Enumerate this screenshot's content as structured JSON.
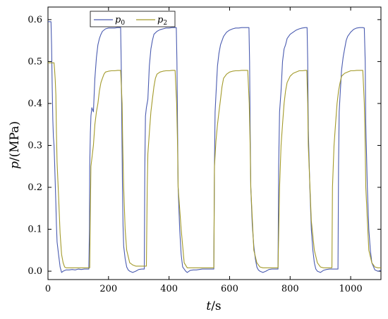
{
  "chart_data": {
    "type": "line",
    "title": "",
    "xlabel": {
      "var": "t",
      "unit": "/s"
    },
    "ylabel": {
      "var": "p",
      "unit": "/(MPa)"
    },
    "xlim": [
      0,
      1100
    ],
    "ylim": [
      -0.02,
      0.63
    ],
    "xticks": [
      0,
      200,
      400,
      600,
      800,
      1000
    ],
    "xtick_labels": [
      "0",
      "200",
      "400",
      "600",
      "800",
      "1000"
    ],
    "yticks": [
      0.0,
      0.1,
      0.2,
      0.3,
      0.4,
      0.5,
      0.6
    ],
    "ytick_labels": [
      "0.0",
      "0.1",
      "0.2",
      "0.3",
      "0.4",
      "0.5",
      "0.6"
    ],
    "grid": false,
    "legend_position": "top-left",
    "colors": {
      "p0": "#4a5bb0",
      "p2": "#a39a2a"
    },
    "series": [
      {
        "name": "p0",
        "var": "p",
        "sub": "0",
        "x": [
          0,
          5,
          10,
          12,
          14,
          16,
          18,
          20,
          22,
          24,
          26,
          28,
          30,
          35,
          40,
          45,
          50,
          60,
          70,
          80,
          90,
          100,
          110,
          120,
          130,
          135,
          137,
          138,
          140,
          142,
          145,
          150,
          155,
          160,
          165,
          170,
          175,
          180,
          190,
          200,
          210,
          220,
          230,
          240,
          242,
          244,
          246,
          248,
          250,
          255,
          260,
          265,
          270,
          280,
          290,
          300,
          310,
          318,
          320,
          322,
          325,
          330,
          335,
          340,
          345,
          350,
          360,
          370,
          380,
          390,
          400,
          410,
          420,
          424,
          426,
          428,
          430,
          435,
          440,
          445,
          450,
          455,
          460,
          470,
          480,
          490,
          500,
          510,
          520,
          530,
          540,
          548,
          550,
          552,
          555,
          560,
          565,
          570,
          580,
          590,
          600,
          610,
          620,
          630,
          640,
          650,
          660,
          664,
          666,
          668,
          670,
          675,
          680,
          685,
          690,
          695,
          700,
          710,
          720,
          730,
          740,
          750,
          758,
          760,
          762,
          765,
          770,
          775,
          780,
          785,
          790,
          800,
          810,
          820,
          830,
          840,
          850,
          854,
          856,
          858,
          860,
          865,
          870,
          875,
          880,
          885,
          890,
          900,
          910,
          920,
          930,
          940,
          950,
          958,
          960,
          962,
          965,
          970,
          975,
          980,
          985,
          990,
          1000,
          1010,
          1020,
          1030,
          1040,
          1045,
          1048,
          1050,
          1055,
          1060,
          1065,
          1070,
          1080,
          1090,
          1100
        ],
        "values": [
          0.595,
          0.595,
          0.595,
          0.54,
          0.44,
          0.36,
          0.32,
          0.3,
          0.26,
          0.21,
          0.16,
          0.11,
          0.07,
          0.04,
          0.01,
          -0.003,
          0.0,
          0.003,
          0.003,
          0.004,
          0.003,
          0.005,
          0.004,
          0.005,
          0.005,
          0.005,
          0.1,
          0.25,
          0.33,
          0.37,
          0.39,
          0.38,
          0.46,
          0.51,
          0.54,
          0.555,
          0.565,
          0.572,
          0.578,
          0.58,
          0.58,
          0.58,
          0.581,
          0.581,
          0.5,
          0.35,
          0.2,
          0.11,
          0.06,
          0.03,
          0.01,
          0.003,
          0.0,
          -0.003,
          0.0,
          0.004,
          0.005,
          0.005,
          0.25,
          0.37,
          0.39,
          0.41,
          0.49,
          0.53,
          0.55,
          0.565,
          0.572,
          0.576,
          0.578,
          0.58,
          0.58,
          0.581,
          0.581,
          0.581,
          0.5,
          0.34,
          0.2,
          0.1,
          0.04,
          0.01,
          0.005,
          0.0,
          -0.003,
          0.002,
          0.003,
          0.003,
          0.004,
          0.005,
          0.005,
          0.005,
          0.005,
          0.005,
          0.25,
          0.38,
          0.42,
          0.49,
          0.52,
          0.54,
          0.56,
          0.57,
          0.575,
          0.578,
          0.58,
          0.58,
          0.581,
          0.581,
          0.581,
          0.581,
          0.5,
          0.34,
          0.2,
          0.11,
          0.06,
          0.03,
          0.01,
          0.003,
          0.0,
          -0.003,
          0.0,
          0.004,
          0.005,
          0.005,
          0.005,
          0.005,
          0.25,
          0.38,
          0.43,
          0.5,
          0.53,
          0.54,
          0.555,
          0.565,
          0.57,
          0.575,
          0.578,
          0.58,
          0.581,
          0.581,
          0.581,
          0.5,
          0.34,
          0.2,
          0.1,
          0.05,
          0.02,
          0.005,
          0.0,
          -0.003,
          0.002,
          0.004,
          0.005,
          0.005,
          0.005,
          0.005,
          0.25,
          0.38,
          0.42,
          0.48,
          0.51,
          0.53,
          0.55,
          0.56,
          0.57,
          0.577,
          0.58,
          0.581,
          0.581,
          0.58,
          0.5,
          0.35,
          0.2,
          0.1,
          0.05,
          0.02,
          0.003,
          0.0,
          0.002
        ]
      },
      {
        "name": "p2",
        "var": "p",
        "sub": "2",
        "x": [
          0,
          10,
          20,
          22,
          24,
          26,
          28,
          30,
          35,
          40,
          45,
          50,
          55,
          60,
          70,
          80,
          90,
          100,
          110,
          120,
          130,
          138,
          140,
          142,
          150,
          155,
          160,
          165,
          170,
          175,
          180,
          185,
          190,
          200,
          210,
          220,
          230,
          240,
          245,
          247,
          250,
          255,
          260,
          270,
          280,
          290,
          300,
          310,
          320,
          325,
          328,
          330,
          335,
          340,
          345,
          350,
          355,
          360,
          370,
          380,
          390,
          400,
          410,
          420,
          425,
          428,
          430,
          440,
          450,
          460,
          470,
          480,
          490,
          500,
          510,
          520,
          530,
          540,
          545,
          548,
          550,
          555,
          560,
          565,
          570,
          575,
          580,
          590,
          600,
          610,
          620,
          630,
          640,
          650,
          660,
          665,
          668,
          670,
          680,
          690,
          700,
          710,
          720,
          730,
          740,
          750,
          755,
          758,
          760,
          765,
          770,
          775,
          780,
          785,
          790,
          800,
          810,
          820,
          830,
          840,
          850,
          855,
          858,
          860,
          870,
          880,
          890,
          900,
          910,
          920,
          930,
          935,
          938,
          940,
          945,
          950,
          955,
          960,
          965,
          970,
          980,
          990,
          1000,
          1010,
          1020,
          1030,
          1040,
          1045,
          1048,
          1050,
          1060,
          1070,
          1080,
          1090,
          1100
        ],
        "values": [
          0.497,
          0.497,
          0.497,
          0.48,
          0.456,
          0.42,
          0.33,
          0.26,
          0.18,
          0.09,
          0.04,
          0.02,
          0.01,
          0.008,
          0.008,
          0.008,
          0.008,
          0.008,
          0.008,
          0.008,
          0.008,
          0.008,
          0.15,
          0.25,
          0.3,
          0.35,
          0.38,
          0.4,
          0.43,
          0.45,
          0.46,
          0.47,
          0.475,
          0.477,
          0.478,
          0.478,
          0.479,
          0.479,
          0.4,
          0.3,
          0.2,
          0.1,
          0.05,
          0.02,
          0.015,
          0.012,
          0.012,
          0.012,
          0.012,
          0.012,
          0.2,
          0.28,
          0.33,
          0.38,
          0.41,
          0.44,
          0.46,
          0.47,
          0.475,
          0.477,
          0.478,
          0.478,
          0.479,
          0.479,
          0.4,
          0.3,
          0.2,
          0.1,
          0.02,
          0.008,
          0.008,
          0.008,
          0.008,
          0.008,
          0.008,
          0.008,
          0.008,
          0.008,
          0.008,
          0.008,
          0.25,
          0.31,
          0.35,
          0.38,
          0.41,
          0.44,
          0.46,
          0.47,
          0.475,
          0.477,
          0.478,
          0.478,
          0.479,
          0.479,
          0.479,
          0.4,
          0.3,
          0.2,
          0.05,
          0.02,
          0.01,
          0.008,
          0.008,
          0.008,
          0.008,
          0.008,
          0.008,
          0.008,
          0.008,
          0.2,
          0.3,
          0.35,
          0.4,
          0.43,
          0.45,
          0.465,
          0.472,
          0.475,
          0.478,
          0.478,
          0.479,
          0.479,
          0.4,
          0.3,
          0.12,
          0.05,
          0.02,
          0.01,
          0.008,
          0.008,
          0.008,
          0.008,
          0.008,
          0.2,
          0.3,
          0.35,
          0.4,
          0.43,
          0.45,
          0.465,
          0.472,
          0.475,
          0.478,
          0.478,
          0.479,
          0.479,
          0.479,
          0.4,
          0.3,
          0.2,
          0.05,
          0.02,
          0.01,
          0.008,
          0.008
        ]
      }
    ]
  }
}
